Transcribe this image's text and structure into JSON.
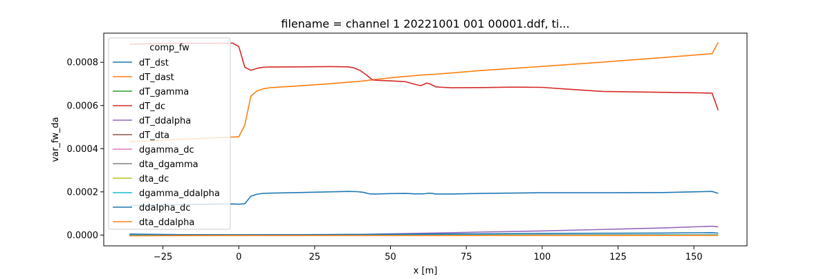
{
  "chart_data": {
    "type": "line",
    "title": "filename = channel 1 20221001 001 00001.ddf, ti...",
    "xlabel": "x [m]",
    "ylabel": "var_fw_da",
    "xlim": [
      -44.5,
      167.5
    ],
    "ylim": [
      -5e-05,
      0.000935
    ],
    "xticks": [
      -25,
      0,
      25,
      50,
      75,
      100,
      125,
      150
    ],
    "xtick_labels": [
      "−25",
      "0",
      "25",
      "50",
      "75",
      "100",
      "125",
      "150"
    ],
    "yticks": [
      0.0,
      0.0002,
      0.0004,
      0.0006,
      0.0008
    ],
    "ytick_labels": [
      "0.0000",
      "0.0002",
      "0.0004",
      "0.0006",
      "0.0008"
    ],
    "grid": false,
    "legend": {
      "title": "comp_fw",
      "position": "upper-left"
    },
    "series": [
      {
        "name": "dT_dst",
        "color": "#1f77b4",
        "x": [
          -36,
          -20,
          -10,
          -2,
          0,
          2,
          4,
          6,
          8,
          10,
          20,
          30,
          36,
          39,
          41,
          43,
          45,
          50,
          55,
          58,
          61,
          63,
          65,
          70,
          80,
          100,
          120,
          140,
          156,
          158
        ],
        "y": [
          0.000137,
          0.000141,
          0.000143,
          0.000144,
          0.000143,
          0.000145,
          0.00018,
          0.000189,
          0.000193,
          0.000194,
          0.000197,
          0.0002,
          0.000202,
          0.000201,
          0.000198,
          0.000191,
          0.00019,
          0.000192,
          0.000193,
          0.000191,
          0.000191,
          0.000194,
          0.00019,
          0.00019,
          0.000193,
          0.000196,
          0.000196,
          0.000197,
          0.000202,
          0.000193
        ]
      },
      {
        "name": "dT_dast",
        "color": "#ff7f0e",
        "x": [
          -36,
          -10,
          -2,
          0,
          2,
          4,
          6,
          8,
          10,
          20,
          30,
          40,
          50,
          60,
          65,
          80,
          100,
          120,
          140,
          156,
          158
        ],
        "y": [
          0.000432,
          0.000449,
          0.000454,
          0.000455,
          0.00051,
          0.000644,
          0.000667,
          0.000677,
          0.000682,
          0.000691,
          0.000701,
          0.000712,
          0.000728,
          0.000741,
          0.000745,
          0.000762,
          0.000781,
          0.000801,
          0.000822,
          0.00084,
          0.000893
        ]
      },
      {
        "name": "dT_gamma",
        "color": "#2ca02c",
        "x": [
          -36,
          0,
          50,
          100,
          158
        ],
        "y": [
          5e-07,
          5e-07,
          6e-07,
          7e-07,
          7e-07
        ]
      },
      {
        "name": "dT_dc",
        "color": "#d62728",
        "x": [
          -36,
          -30,
          -20,
          -10,
          -2,
          0,
          2,
          4,
          6,
          8,
          10,
          20,
          30,
          36,
          38,
          40,
          42,
          44,
          46,
          50,
          55,
          58,
          60,
          62,
          63,
          65,
          70,
          80,
          90,
          100,
          110,
          120,
          130,
          140,
          150,
          156,
          158
        ],
        "y": [
          0.000883,
          0.000886,
          0.000888,
          0.000888,
          0.000889,
          0.000873,
          0.000777,
          0.000763,
          0.000772,
          0.000777,
          0.000778,
          0.000779,
          0.00078,
          0.000779,
          0.000774,
          0.000762,
          0.000742,
          0.000719,
          0.000716,
          0.000714,
          0.00071,
          0.000698,
          0.000692,
          0.000704,
          0.0007,
          0.000686,
          0.000682,
          0.000683,
          0.000685,
          0.000684,
          0.000674,
          0.000665,
          0.000663,
          0.000661,
          0.000659,
          0.000657,
          0.000578
        ]
      },
      {
        "name": "dT_ddalpha",
        "color": "#9467bd",
        "x": [
          -36,
          -20,
          0,
          20,
          40,
          60,
          80,
          100,
          120,
          140,
          156,
          158
        ],
        "y": [
          2.5e-06,
          5e-07,
          0.0,
          1e-06,
          3e-06,
          8e-06,
          1.4e-05,
          1.9e-05,
          2.6e-05,
          3.3e-05,
          4.1e-05,
          3.8e-05
        ]
      },
      {
        "name": "dT_dta",
        "color": "#8c564b",
        "x": [
          -36,
          0,
          50,
          100,
          158
        ],
        "y": [
          4e-07,
          4e-07,
          4e-07,
          5e-07,
          5e-07
        ]
      },
      {
        "name": "dgamma_dc",
        "color": "#e377c2",
        "x": [
          -36,
          0,
          50,
          100,
          158
        ],
        "y": [
          3e-07,
          3e-07,
          3e-07,
          3e-07,
          3e-07
        ]
      },
      {
        "name": "dta_dgamma",
        "color": "#7f7f7f",
        "x": [
          -36,
          0,
          50,
          100,
          158
        ],
        "y": [
          3e-07,
          3e-07,
          3e-07,
          3e-07,
          3e-07
        ]
      },
      {
        "name": "dta_dc",
        "color": "#bcbd22",
        "x": [
          -36,
          0,
          50,
          100,
          158
        ],
        "y": [
          2e-07,
          2e-07,
          2e-07,
          2e-07,
          2e-07
        ]
      },
      {
        "name": "dgamma_ddalpha",
        "color": "#17becf",
        "x": [
          -36,
          0,
          50,
          100,
          158
        ],
        "y": [
          2e-07,
          2e-07,
          2e-07,
          2e-07,
          2e-07
        ]
      },
      {
        "name": "ddalpha_dc",
        "color": "#1f77b4",
        "x": [
          -36,
          -20,
          0,
          20,
          40,
          60,
          80,
          100,
          120,
          140,
          156,
          158
        ],
        "y": [
          4.5e-06,
          2e-06,
          1.5e-06,
          2e-06,
          3e-06,
          5e-06,
          6e-06,
          7.5e-06,
          8.5e-06,
          9.5e-06,
          1.1e-05,
          9e-06
        ]
      },
      {
        "name": "dta_ddalpha",
        "color": "#ff7f0e",
        "x": [
          -36,
          -20,
          0,
          50,
          100,
          158
        ],
        "y": [
          -3.5e-06,
          -2.5e-06,
          -2e-06,
          -2e-06,
          -1.5e-06,
          -1.5e-06
        ]
      }
    ]
  }
}
